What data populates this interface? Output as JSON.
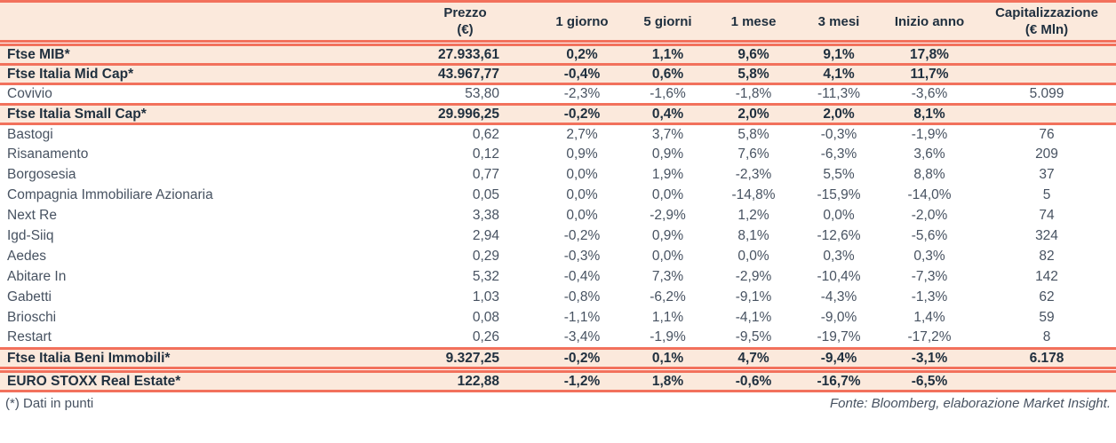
{
  "colors": {
    "border_red": "#f2715c",
    "row_peach": "#fbe9dc",
    "text_dark": "#20303f",
    "text_gray": "#475261"
  },
  "table": {
    "headers": {
      "name": "",
      "prezzo": "Prezzo\n(€)",
      "d1": "1 giorno",
      "d5": "5 giorni",
      "m1": "1 mese",
      "m3": "3 mesi",
      "ytd": "Inizio anno",
      "cap": "Capitalizzazione\n(€ Mln)"
    },
    "rows": [
      {
        "type": "index",
        "name": "Ftse MIB*",
        "prezzo": "27.933,61",
        "d1": "0,2%",
        "d5": "1,1%",
        "m1": "9,6%",
        "m3": "9,1%",
        "ytd": "17,8%",
        "cap": ""
      },
      {
        "type": "index",
        "name": "Ftse Italia Mid Cap*",
        "prezzo": "43.967,77",
        "d1": "-0,4%",
        "d5": "0,6%",
        "m1": "5,8%",
        "m3": "4,1%",
        "ytd": "11,7%",
        "cap": ""
      },
      {
        "type": "stock",
        "name": "Covivio",
        "prezzo": "53,80",
        "d1": "-2,3%",
        "d5": "-1,6%",
        "m1": "-1,8%",
        "m3": "-11,3%",
        "ytd": "-3,6%",
        "cap": "5.099"
      },
      {
        "type": "index",
        "name": "Ftse Italia Small Cap*",
        "prezzo": "29.996,25",
        "d1": "-0,2%",
        "d5": "0,4%",
        "m1": "2,0%",
        "m3": "2,0%",
        "ytd": "8,1%",
        "cap": ""
      },
      {
        "type": "stock",
        "name": "Bastogi",
        "prezzo": "0,62",
        "d1": "2,7%",
        "d5": "3,7%",
        "m1": "5,8%",
        "m3": "-0,3%",
        "ytd": "-1,9%",
        "cap": "76"
      },
      {
        "type": "stock",
        "name": "Risanamento",
        "prezzo": "0,12",
        "d1": "0,9%",
        "d5": "0,9%",
        "m1": "7,6%",
        "m3": "-6,3%",
        "ytd": "3,6%",
        "cap": "209"
      },
      {
        "type": "stock",
        "name": "Borgosesia",
        "prezzo": "0,77",
        "d1": "0,0%",
        "d5": "1,9%",
        "m1": "-2,3%",
        "m3": "5,5%",
        "ytd": "8,8%",
        "cap": "37"
      },
      {
        "type": "stock",
        "name": "Compagnia Immobiliare Azionaria",
        "prezzo": "0,05",
        "d1": "0,0%",
        "d5": "0,0%",
        "m1": "-14,8%",
        "m3": "-15,9%",
        "ytd": "-14,0%",
        "cap": "5"
      },
      {
        "type": "stock",
        "name": "Next Re",
        "prezzo": "3,38",
        "d1": "0,0%",
        "d5": "-2,9%",
        "m1": "1,2%",
        "m3": "0,0%",
        "ytd": "-2,0%",
        "cap": "74"
      },
      {
        "type": "stock",
        "name": "Igd-Siiq",
        "prezzo": "2,94",
        "d1": "-0,2%",
        "d5": "0,9%",
        "m1": "8,1%",
        "m3": "-12,6%",
        "ytd": "-5,6%",
        "cap": "324"
      },
      {
        "type": "stock",
        "name": "Aedes",
        "prezzo": "0,29",
        "d1": "-0,3%",
        "d5": "0,0%",
        "m1": "0,0%",
        "m3": "0,3%",
        "ytd": "0,3%",
        "cap": "82"
      },
      {
        "type": "stock",
        "name": "Abitare In",
        "prezzo": "5,32",
        "d1": "-0,4%",
        "d5": "7,3%",
        "m1": "-2,9%",
        "m3": "-10,4%",
        "ytd": "-7,3%",
        "cap": "142"
      },
      {
        "type": "stock",
        "name": "Gabetti",
        "prezzo": "1,03",
        "d1": "-0,8%",
        "d5": "-6,2%",
        "m1": "-9,1%",
        "m3": "-4,3%",
        "ytd": "-1,3%",
        "cap": "62"
      },
      {
        "type": "stock",
        "name": "Brioschi",
        "prezzo": "0,08",
        "d1": "-1,1%",
        "d5": "1,1%",
        "m1": "-4,1%",
        "m3": "-9,0%",
        "ytd": "1,4%",
        "cap": "59"
      },
      {
        "type": "stock",
        "name": "Restart",
        "prezzo": "0,26",
        "d1": "-3,4%",
        "d5": "-1,9%",
        "m1": "-9,5%",
        "m3": "-19,7%",
        "ytd": "-17,2%",
        "cap": "8"
      },
      {
        "type": "index",
        "name": "Ftse Italia Beni Immobili*",
        "prezzo": "9.327,25",
        "d1": "-0,2%",
        "d5": "0,1%",
        "m1": "4,7%",
        "m3": "-9,4%",
        "ytd": "-3,1%",
        "cap": "6.178"
      },
      {
        "type": "index",
        "gap_above": true,
        "name": "EURO STOXX Real Estate*",
        "prezzo": "122,88",
        "d1": "-1,2%",
        "d5": "1,8%",
        "m1": "-0,6%",
        "m3": "-16,7%",
        "ytd": "-6,5%",
        "cap": ""
      }
    ]
  },
  "footer": {
    "note": "(*) Dati in punti",
    "source": "Fonte: Bloomberg, elaborazione Market Insight."
  }
}
